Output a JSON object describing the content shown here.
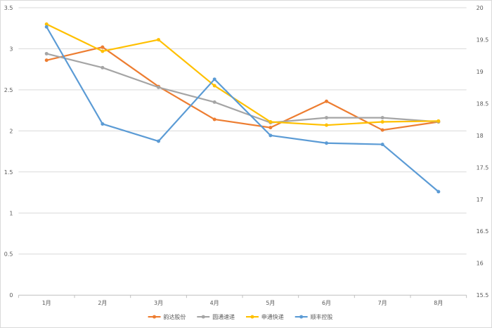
{
  "chart_data": {
    "type": "line",
    "categories": [
      "1月",
      "2月",
      "3月",
      "4月",
      "5月",
      "6月",
      "7月",
      "8月"
    ],
    "left_axis": {
      "min": 0,
      "max": 3.5,
      "ticks": [
        "0",
        "0.5",
        "1",
        "1.5",
        "2",
        "2.5",
        "3",
        "3.5"
      ]
    },
    "right_axis": {
      "min": 15.5,
      "max": 20,
      "ticks": [
        "15.5",
        "16",
        "16.5",
        "17",
        "17.5",
        "18",
        "18.5",
        "19",
        "19.5",
        "20"
      ]
    },
    "grid": true,
    "legend_position": "bottom",
    "series": [
      {
        "name": "韵达股份",
        "color": "#ED7D31",
        "axis": "left",
        "values": [
          2.86,
          3.02,
          2.54,
          2.14,
          2.04,
          2.36,
          2.01,
          2.11
        ]
      },
      {
        "name": "圆通速递",
        "color": "#A5A5A5",
        "axis": "left",
        "values": [
          2.94,
          2.77,
          2.53,
          2.35,
          2.1,
          2.16,
          2.16,
          2.11
        ]
      },
      {
        "name": "申通快递",
        "color": "#FFC000",
        "axis": "left",
        "values": [
          3.3,
          2.97,
          3.11,
          2.55,
          2.11,
          2.07,
          2.11,
          2.12
        ]
      },
      {
        "name": "顺丰控股",
        "color": "#5B9BD5",
        "axis": "right",
        "values": [
          19.7,
          18.18,
          17.91,
          18.88,
          18.0,
          17.88,
          17.86,
          17.12
        ]
      }
    ]
  }
}
